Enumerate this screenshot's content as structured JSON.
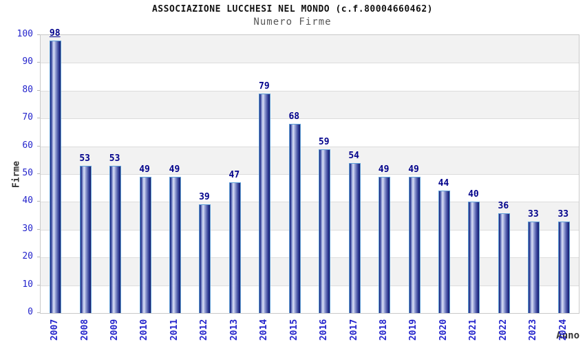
{
  "header": {
    "title": "ASSOCIAZIONE LUCCHESI NEL MONDO (c.f.80004660462)",
    "subtitle": "Numero Firme"
  },
  "chart_data": {
    "type": "bar",
    "title": "ASSOCIAZIONE LUCCHESI NEL MONDO (c.f.80004660462)",
    "subtitle": "Numero Firme",
    "categories": [
      "2007",
      "2008",
      "2009",
      "2010",
      "2011",
      "2012",
      "2013",
      "2014",
      "2015",
      "2016",
      "2017",
      "2018",
      "2019",
      "2020",
      "2021",
      "2022",
      "2023",
      "2024"
    ],
    "values": [
      98,
      53,
      53,
      49,
      49,
      39,
      47,
      79,
      68,
      59,
      54,
      49,
      49,
      44,
      40,
      36,
      33,
      33
    ],
    "xlabel": "Anno",
    "ylabel": "Firme",
    "ylim": [
      0,
      100
    ],
    "ytick_step": 10,
    "yticks": [
      0,
      10,
      20,
      30,
      40,
      50,
      60,
      70,
      80,
      90,
      100
    ],
    "grid": true,
    "legend": "none",
    "underlined_value_label_category": "2007",
    "colors": {
      "band_gray": "#f2f2f2",
      "band_white": "#ffffff",
      "gridline": "#dcdcdc",
      "plot_border": "#c9c9c9",
      "bar_edge_dark": "#1b2473",
      "bar_highlight": "#d8ddf2",
      "bar_outline_light_blue": "#5f9fd8",
      "tick_text_blue": "#2424cc",
      "value_label_navy": "#00008b",
      "title_text": "#111111",
      "subtitle_text": "#555555",
      "axis_title_text": "#333333"
    }
  }
}
